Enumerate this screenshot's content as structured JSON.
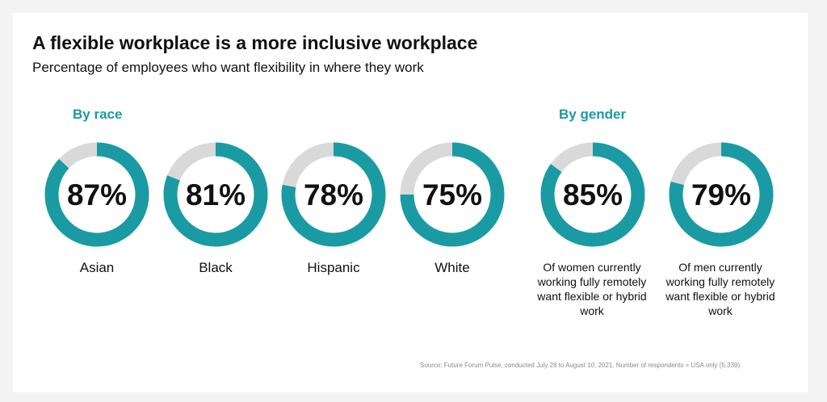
{
  "header": {
    "title": "A flexible workplace is a more inclusive workplace",
    "subtitle": "Percentage of employees who want flexibility in where they work"
  },
  "sections": {
    "race_label": "By race",
    "gender_label": "By gender"
  },
  "colors": {
    "accent": "#1a9ba3",
    "track": "#d9d9d9",
    "section_label": "#1a9ba3"
  },
  "chart_data": {
    "type": "pie",
    "variant": "donut",
    "title": "A flexible workplace is a more inclusive workplace",
    "subtitle": "Percentage of employees who want flexibility in where they work",
    "unit": "%",
    "groups": [
      {
        "name": "By race",
        "items": [
          {
            "label": "Asian",
            "value": 87,
            "display": "87%"
          },
          {
            "label": "Black",
            "value": 81,
            "display": "81%"
          },
          {
            "label": "Hispanic",
            "value": 78,
            "display": "78%"
          },
          {
            "label": "White",
            "value": 75,
            "display": "75%"
          }
        ]
      },
      {
        "name": "By gender",
        "items": [
          {
            "label": "Of women currently working fully remotely want flexible or hybrid work",
            "value": 85,
            "display": "85%"
          },
          {
            "label": "Of men currently working fully remotely want flexible or hybrid work",
            "value": 79,
            "display": "79%"
          }
        ]
      }
    ]
  },
  "footer": {
    "source": "Source: Future Forum Pulse, conducted July 28 to August 10, 2021. Number of respondents = USA only (5,339)."
  }
}
